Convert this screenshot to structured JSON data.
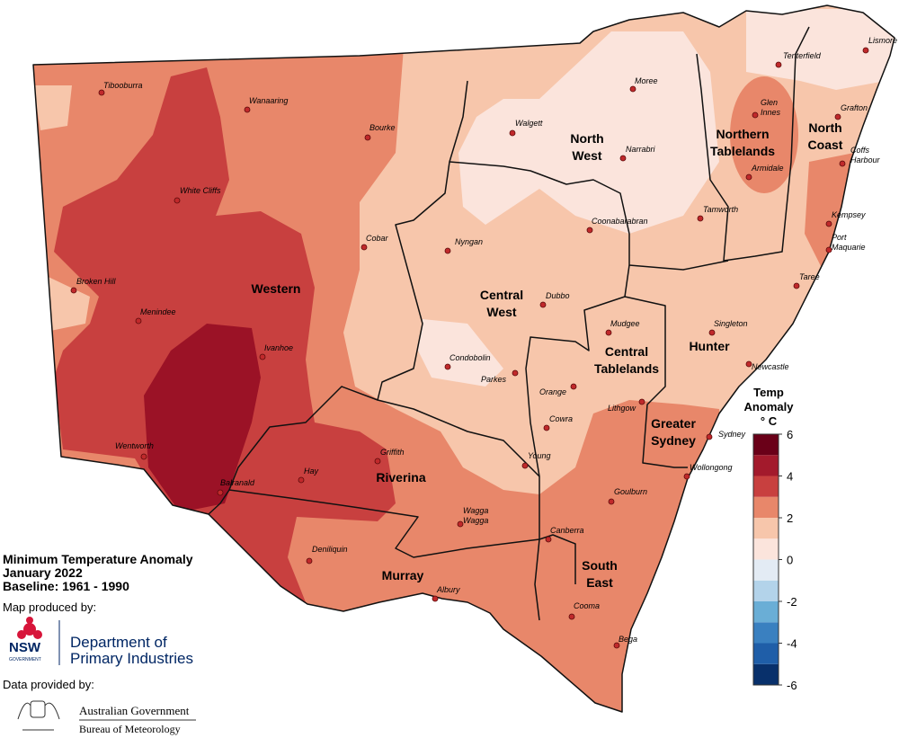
{
  "title": [
    "Minimum Temperature Anomaly",
    "January 2022",
    "Baseline: 1961 - 1990"
  ],
  "regions": [
    [
      "Western"
    ],
    [
      "North",
      "West"
    ],
    [
      "Northern",
      "Tablelands"
    ],
    [
      "North",
      "Coast"
    ],
    [
      "Central",
      "West"
    ],
    [
      "Central",
      "Tablelands"
    ],
    [
      "Hunter"
    ],
    [
      "Greater",
      "Sydney"
    ],
    [
      "Riverina"
    ],
    [
      "Murray"
    ],
    [
      "South",
      "East"
    ]
  ],
  "towns": [
    [
      "Tibooburra"
    ],
    [
      "Wanaaring"
    ],
    [
      "Bourke"
    ],
    [
      "White Cliffs"
    ],
    [
      "Cobar"
    ],
    [
      "Broken Hill"
    ],
    [
      "Menindee"
    ],
    [
      "Ivanhoe"
    ],
    [
      "Wentworth"
    ],
    [
      "Balranald"
    ],
    [
      "Hay"
    ],
    [
      "Griffith"
    ],
    [
      "Deniliquin"
    ],
    [
      "Wagga",
      "Wagga"
    ],
    [
      "Albury"
    ],
    [
      "Moree"
    ],
    [
      "Walgett"
    ],
    [
      "Narrabri"
    ],
    [
      "Nyngan"
    ],
    [
      "Coonabarabran"
    ],
    [
      "Dubbo"
    ],
    [
      "Condobolin"
    ],
    [
      "Parkes"
    ],
    [
      "Orange"
    ],
    [
      "Cowra"
    ],
    [
      "Young"
    ],
    [
      "Mudgee"
    ],
    [
      "Lithgow"
    ],
    [
      "Singleton"
    ],
    [
      "Newcastle"
    ],
    [
      "Sydney"
    ],
    [
      "Wollongong"
    ],
    [
      "Goulburn"
    ],
    [
      "Canberra"
    ],
    [
      "Cooma"
    ],
    [
      "Bega"
    ],
    [
      "Tenterfield"
    ],
    [
      "Glen",
      "Innes"
    ],
    [
      "Armidale"
    ],
    [
      "Tamworth"
    ],
    [
      "Lismore"
    ],
    [
      "Grafton"
    ],
    [
      "Coffs",
      "Harbour"
    ],
    [
      "Kempsey"
    ],
    [
      "Port",
      "Maquarie"
    ],
    [
      "Taree"
    ]
  ],
  "legend": {
    "title": [
      "Temp",
      "Anomaly",
      "° C"
    ],
    "range": [
      -6,
      6
    ],
    "ticks": [
      6,
      4,
      2,
      0,
      -2,
      -4,
      -6
    ],
    "colors": [
      "#08306b",
      "#1f5ea8",
      "#3a80c0",
      "#6aaed6",
      "#b3d3ea",
      "#e3ebf4",
      "#fbe4dc",
      "#f7c6ab",
      "#e8876a",
      "#c8403f",
      "#a31a2c",
      "#6a0018"
    ]
  },
  "credits": {
    "map_by": "Map produced by:",
    "nsw": "NSW",
    "nsw_sub": "GOVERNMENT",
    "department": [
      "Department of",
      "Primary Industries"
    ],
    "data_by": "Data provided by:",
    "government": "Australian Government",
    "bureau": "Bureau of Meteorology"
  }
}
